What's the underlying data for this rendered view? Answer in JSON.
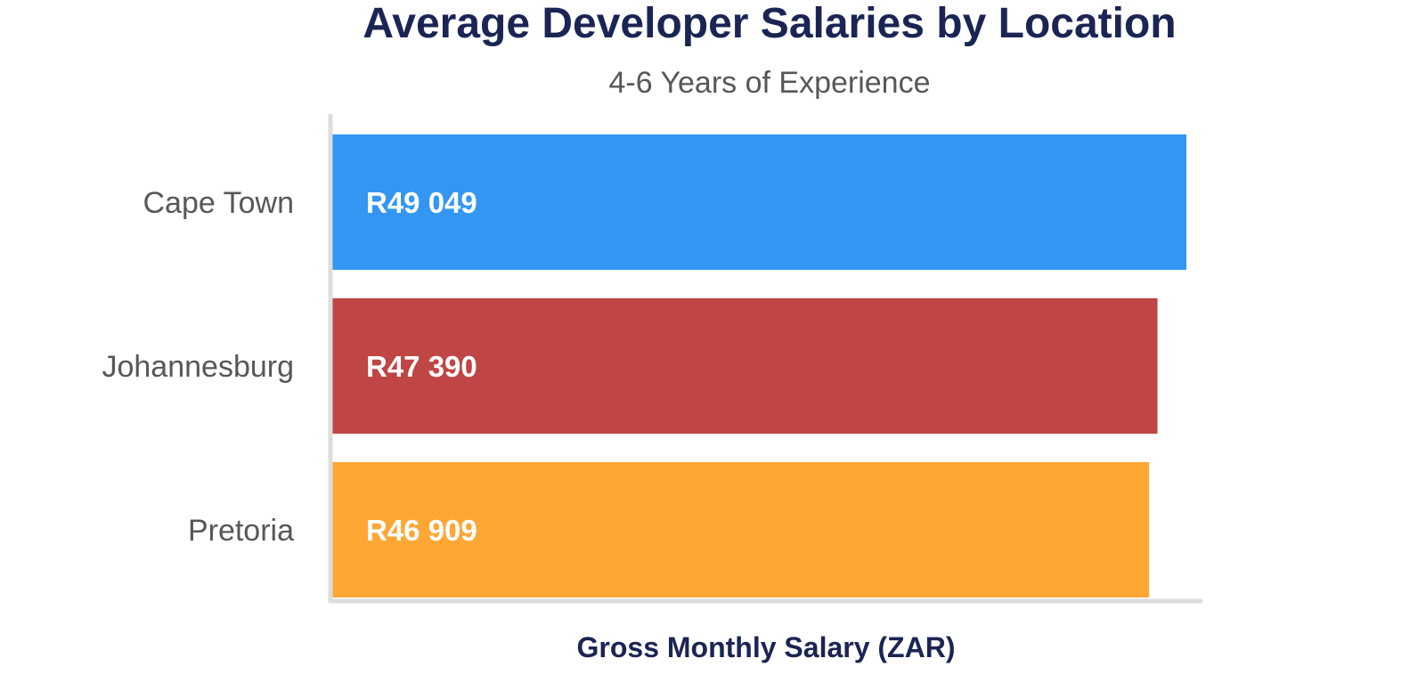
{
  "chart_data": {
    "type": "bar",
    "orientation": "horizontal",
    "title": "Average Developer Salaries by Location",
    "subtitle": "4-6 Years of Experience",
    "xlabel": "Gross Monthly Salary (ZAR)",
    "ylabel": "",
    "categories": [
      "Cape Town",
      "Johannesburg",
      "Pretoria"
    ],
    "values": [
      49049,
      47390,
      46909
    ],
    "value_labels": [
      "R49 049",
      "R47 390",
      "R46 909"
    ],
    "colors": [
      "#3396f2",
      "#c04545",
      "#fea735"
    ],
    "xlim": [
      0,
      50000
    ],
    "grid": false,
    "legend": "none",
    "axis_color": "#dddddd"
  }
}
